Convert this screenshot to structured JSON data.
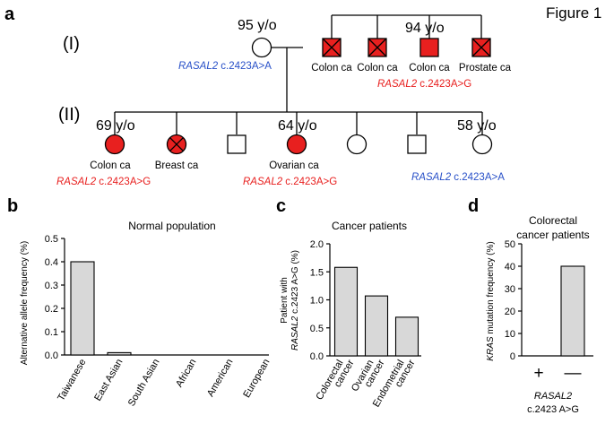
{
  "figure_title": "Figure 1",
  "colors": {
    "red": "#e8201f",
    "blue": "#2850c8",
    "bar": "#d8d8d8"
  },
  "panel_a": {
    "letter": "a",
    "gen1_label": "(I)",
    "gen2_label": "(II)",
    "gen1": {
      "mother_age": "95 y/o",
      "mother_variant": {
        "gene": "RASAL2",
        "change": " c.2423A>A"
      },
      "siblings": [
        {
          "label": "Colon ca",
          "status": "deceased"
        },
        {
          "label": "Colon ca",
          "status": "deceased"
        },
        {
          "label": "Colon ca",
          "status": "alive",
          "age": "94 y/o"
        },
        {
          "label": "Prostate ca",
          "status": "deceased"
        }
      ],
      "sibling_variant": {
        "gene": "RASAL2",
        "change": " c.2423A>G"
      }
    },
    "gen2": {
      "children": [
        {
          "sex": "female",
          "affected": true,
          "deceased": false,
          "age": "69 y/o",
          "label": "Colon ca"
        },
        {
          "sex": "female",
          "affected": true,
          "deceased": true,
          "age": "",
          "label": "Breast ca"
        },
        {
          "sex": "male",
          "affected": false,
          "deceased": false,
          "age": "",
          "label": ""
        },
        {
          "sex": "female",
          "affected": true,
          "deceased": false,
          "age": "64 y/o",
          "label": "Ovarian ca"
        },
        {
          "sex": "female",
          "affected": false,
          "deceased": false,
          "age": "",
          "label": ""
        },
        {
          "sex": "male",
          "affected": false,
          "deceased": false,
          "age": "",
          "label": ""
        },
        {
          "sex": "female",
          "affected": false,
          "deceased": false,
          "age": "58 y/o",
          "label": ""
        }
      ],
      "variants": [
        {
          "gene": "RASAL2",
          "change": " c.2423A>G",
          "color": "red"
        },
        {
          "gene": "RASAL2",
          "change": " c.2423A>G",
          "color": "red"
        },
        {
          "gene": "RASAL2",
          "change": " c.2423A>A",
          "color": "blue"
        }
      ]
    }
  },
  "chart_data": [
    {
      "panel": "b",
      "type": "bar",
      "title": "Normal population",
      "ylabel": "Alternative allele frequency (%)",
      "categories": [
        "Taiwanese",
        "East Asian",
        "South Asian",
        "African",
        "American",
        "European"
      ],
      "values": [
        0.4,
        0.01,
        0,
        0,
        0,
        0
      ],
      "ylim": [
        0,
        0.5
      ],
      "yticks": [
        "0.0",
        "0.1",
        "0.2",
        "0.3",
        "0.4",
        "0.5"
      ]
    },
    {
      "panel": "c",
      "type": "bar",
      "title": "Cancer patients",
      "ylabel_line1": "Patient with",
      "ylabel_line2": {
        "gene": "RASAL2",
        "change": " c.2423 A>G (%)"
      },
      "categories": [
        [
          "Colorectal",
          "cancer"
        ],
        [
          "Ovarian",
          "cancer"
        ],
        [
          "Endometrial",
          "cancer"
        ]
      ],
      "values": [
        1.58,
        1.07,
        0.69
      ],
      "ylim": [
        0,
        2.0
      ],
      "yticks": [
        "0.0",
        "0.5",
        "1.0",
        "1.5",
        "2.0"
      ]
    },
    {
      "panel": "d",
      "type": "bar",
      "title_line1": "Colorectal",
      "title_line2": "cancer patients",
      "ylabel": {
        "gene": "KRAS",
        "rest": " mutation frequency (%)"
      },
      "categories": [
        "+",
        "—"
      ],
      "values": [
        0,
        40
      ],
      "ylim": [
        0,
        50
      ],
      "yticks": [
        "0",
        "10",
        "20",
        "30",
        "40",
        "50"
      ],
      "xlabel_line1": "RASAL2",
      "xlabel_line2": "c.2423 A>G"
    }
  ]
}
